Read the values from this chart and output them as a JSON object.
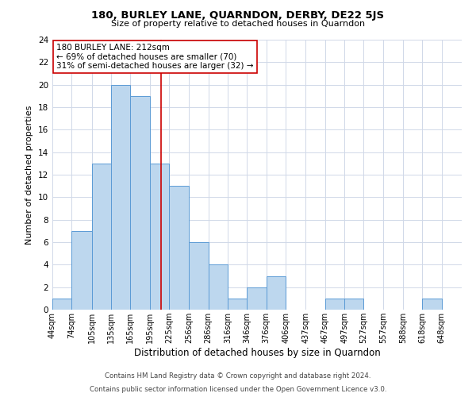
{
  "title": "180, BURLEY LANE, QUARNDON, DERBY, DE22 5JS",
  "subtitle": "Size of property relative to detached houses in Quarndon",
  "xlabel": "Distribution of detached houses by size in Quarndon",
  "ylabel": "Number of detached properties",
  "footnote1": "Contains HM Land Registry data © Crown copyright and database right 2024.",
  "footnote2": "Contains public sector information licensed under the Open Government Licence v3.0.",
  "bin_labels": [
    "44sqm",
    "74sqm",
    "105sqm",
    "135sqm",
    "165sqm",
    "195sqm",
    "225sqm",
    "256sqm",
    "286sqm",
    "316sqm",
    "346sqm",
    "376sqm",
    "406sqm",
    "437sqm",
    "467sqm",
    "497sqm",
    "527sqm",
    "557sqm",
    "588sqm",
    "618sqm",
    "648sqm"
  ],
  "bar_heights": [
    1,
    7,
    13,
    20,
    19,
    13,
    11,
    6,
    4,
    1,
    2,
    3,
    0,
    0,
    1,
    1,
    0,
    0,
    0,
    1,
    0
  ],
  "bar_color": "#bdd7ee",
  "bar_edge_color": "#5b9bd5",
  "vline_color": "#cc0000",
  "annotation_title": "180 BURLEY LANE: 212sqm",
  "annotation_line1": "← 69% of detached houses are smaller (70)",
  "annotation_line2": "31% of semi-detached houses are larger (32) →",
  "annotation_box_edge": "#cc0000",
  "annotation_box_fill": "#ffffff",
  "ylim": [
    0,
    24
  ],
  "yticks": [
    0,
    2,
    4,
    6,
    8,
    10,
    12,
    14,
    16,
    18,
    20,
    22,
    24
  ],
  "bin_edges": [
    44,
    74,
    105,
    135,
    165,
    195,
    225,
    256,
    286,
    316,
    346,
    376,
    406,
    437,
    467,
    497,
    527,
    557,
    588,
    618,
    648,
    679
  ],
  "vline_x": 212,
  "grid_color": "#d0d8e8",
  "background_color": "#ffffff"
}
